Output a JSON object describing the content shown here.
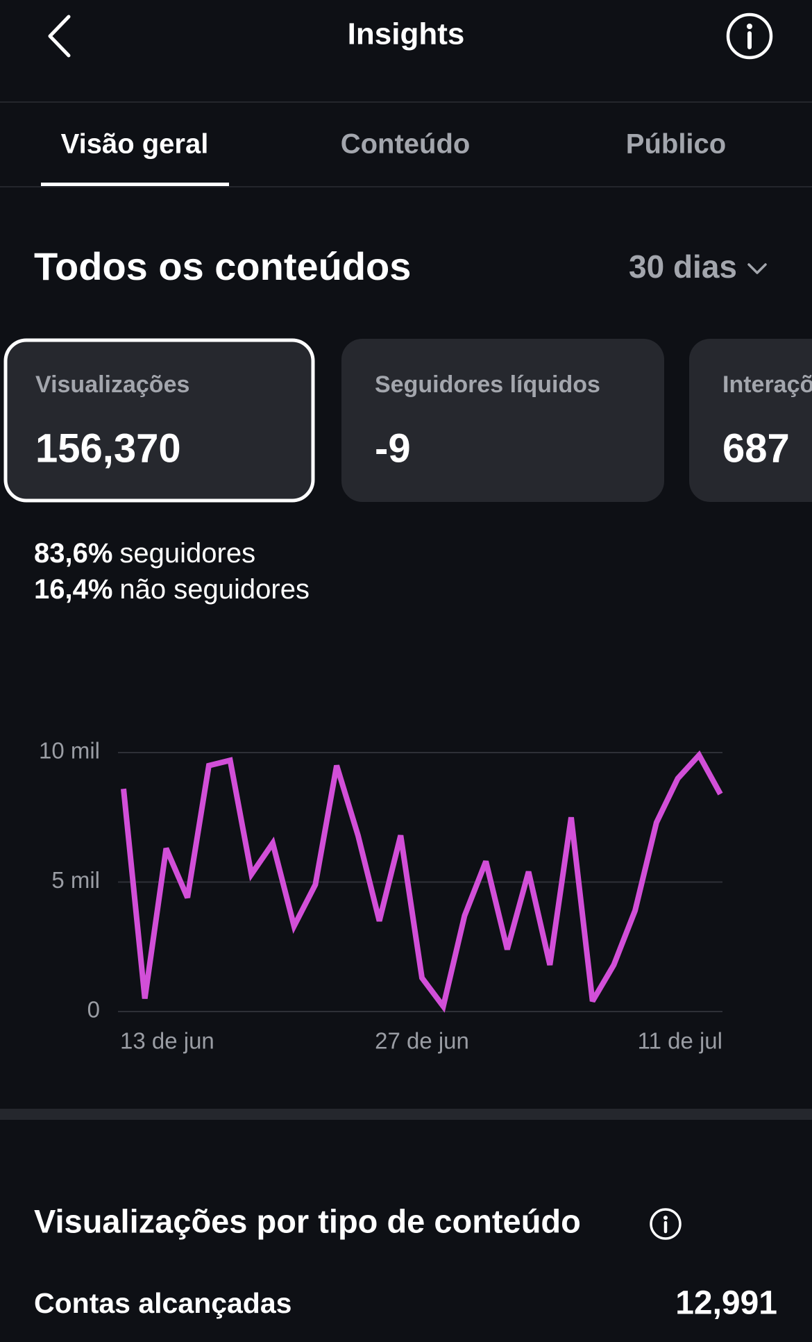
{
  "header": {
    "title": "Insights"
  },
  "tabs": [
    "Visão geral",
    "Conteúdo",
    "Público"
  ],
  "section": {
    "title": "Todos os conteúdos",
    "period": "30 dias"
  },
  "metrics": [
    {
      "label": "Visualizações",
      "value": "156,370"
    },
    {
      "label": "Seguidores líquidos",
      "value": "-9"
    },
    {
      "label": "Interações",
      "value": "687"
    }
  ],
  "audience": [
    {
      "percent": "83,6%",
      "label": "seguidores"
    },
    {
      "percent": "16,4%",
      "label": "não seguidores"
    }
  ],
  "chart_data": {
    "type": "line",
    "categories": [
      "13 de jun",
      null,
      null,
      null,
      null,
      null,
      null,
      null,
      null,
      null,
      null,
      null,
      null,
      null,
      "27 de jun",
      null,
      null,
      null,
      null,
      null,
      null,
      null,
      null,
      null,
      null,
      null,
      null,
      null,
      "11 de jul"
    ],
    "values": [
      8600,
      500,
      6300,
      4400,
      9500,
      9700,
      5300,
      6500,
      3300,
      4900,
      9500,
      6800,
      3500,
      6800,
      1300,
      200,
      3700,
      5800,
      2400,
      5400,
      1800,
      7500,
      400,
      1800,
      3900,
      7300,
      9000,
      9900,
      8400
    ],
    "color": "#d24fd8",
    "ylim": [
      0,
      10000
    ],
    "yticks": [
      0,
      {
        "value": 5000,
        "label": "5 mil"
      },
      {
        "value": 10000,
        "label": "10 mil"
      }
    ],
    "grid": true
  },
  "breakdown": {
    "title": "Visualizações por tipo de conteúdo"
  },
  "stats": [
    {
      "label": "Contas alcançadas",
      "value": "12,991"
    }
  ]
}
